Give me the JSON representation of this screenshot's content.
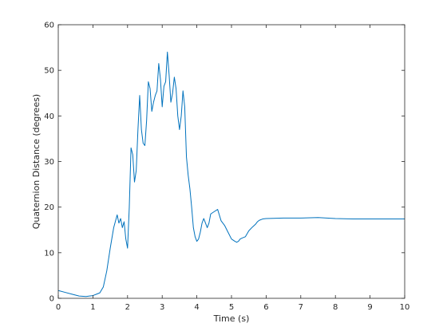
{
  "chart_data": {
    "type": "line",
    "title": "",
    "xlabel": "Time (s)",
    "ylabel": "Quaternion Distance (degrees)",
    "xlim": [
      0,
      10
    ],
    "ylim": [
      0,
      60
    ],
    "xticks": [
      0,
      1,
      2,
      3,
      4,
      5,
      6,
      7,
      8,
      9,
      10
    ],
    "yticks": [
      0,
      10,
      20,
      30,
      40,
      50,
      60
    ],
    "grid": false,
    "legend": "none",
    "series": [
      {
        "color": "#0072BD",
        "x": [
          0.0,
          0.2,
          0.4,
          0.6,
          0.8,
          0.9,
          1.0,
          1.1,
          1.2,
          1.3,
          1.4,
          1.5,
          1.6,
          1.7,
          1.75,
          1.8,
          1.85,
          1.9,
          1.95,
          2.0,
          2.05,
          2.1,
          2.15,
          2.2,
          2.25,
          2.3,
          2.35,
          2.4,
          2.45,
          2.5,
          2.55,
          2.6,
          2.65,
          2.7,
          2.75,
          2.8,
          2.85,
          2.9,
          2.95,
          3.0,
          3.05,
          3.1,
          3.15,
          3.2,
          3.25,
          3.3,
          3.35,
          3.4,
          3.45,
          3.5,
          3.55,
          3.6,
          3.65,
          3.7,
          3.75,
          3.8,
          3.85,
          3.9,
          3.95,
          4.0,
          4.05,
          4.1,
          4.15,
          4.2,
          4.25,
          4.3,
          4.35,
          4.4,
          4.5,
          4.6,
          4.7,
          4.8,
          4.9,
          5.0,
          5.1,
          5.15,
          5.2,
          5.25,
          5.3,
          5.4,
          5.5,
          5.6,
          5.7,
          5.75,
          5.8,
          5.9,
          6.0,
          6.5,
          7.0,
          7.5,
          8.0,
          8.5,
          9.0,
          9.5,
          10.0
        ],
        "y": [
          1.7,
          1.3,
          0.9,
          0.5,
          0.4,
          0.5,
          0.6,
          0.9,
          1.2,
          2.5,
          6.0,
          11.0,
          15.5,
          18.3,
          16.5,
          17.5,
          15.5,
          16.8,
          13.0,
          11.0,
          20.0,
          33.0,
          31.5,
          25.5,
          28.0,
          37.0,
          44.5,
          37.0,
          34.0,
          33.5,
          39.0,
          47.5,
          46.0,
          41.0,
          43.0,
          44.5,
          45.5,
          51.5,
          48.0,
          42.0,
          46.5,
          47.5,
          54.0,
          49.0,
          43.0,
          45.0,
          48.5,
          46.0,
          40.0,
          37.0,
          40.0,
          45.5,
          42.0,
          31.0,
          27.0,
          24.0,
          20.0,
          15.5,
          13.5,
          12.5,
          13.0,
          14.5,
          16.5,
          17.5,
          16.5,
          15.5,
          16.5,
          18.5,
          19.0,
          19.5,
          17.0,
          16.0,
          14.5,
          13.0,
          12.5,
          12.3,
          12.5,
          13.0,
          13.2,
          13.5,
          14.8,
          15.6,
          16.3,
          16.8,
          17.1,
          17.4,
          17.5,
          17.6,
          17.6,
          17.7,
          17.5,
          17.4,
          17.4,
          17.4,
          17.4
        ]
      }
    ]
  }
}
